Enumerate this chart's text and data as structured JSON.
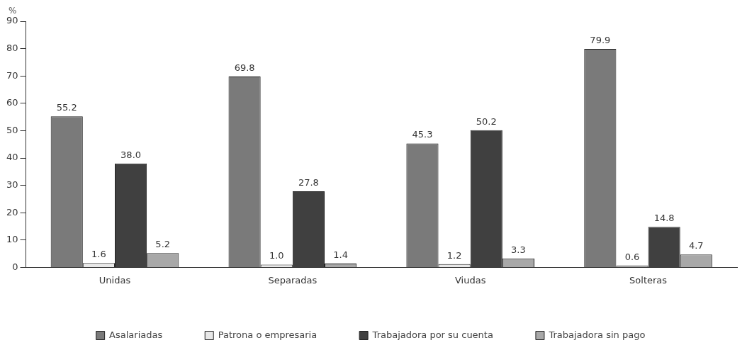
{
  "chart_data": {
    "type": "bar",
    "ylabel": "%",
    "categories": [
      "Unidas",
      "Separadas",
      "Viudas",
      "Solteras"
    ],
    "series": [
      {
        "name": "Asalariadas",
        "color": "#7a7a7a",
        "values": [
          55.2,
          69.8,
          45.3,
          79.9
        ],
        "value_labels": [
          "55.2",
          "69.8",
          "45.3",
          "79.9"
        ]
      },
      {
        "name": "Patrona o empresaria",
        "color": "#e8e8e8",
        "values": [
          1.6,
          1.0,
          1.2,
          0.6
        ],
        "value_labels": [
          "1.6",
          "1.0",
          "1.2",
          "0.6"
        ]
      },
      {
        "name": "Trabajadora por su cuenta",
        "color": "#404040",
        "values": [
          38.0,
          27.8,
          50.2,
          14.8
        ],
        "value_labels": [
          "38.0",
          "27.8",
          "50.2",
          "14.8"
        ]
      },
      {
        "name": "Trabajadora sin pago",
        "color": "#a8a8a8",
        "values": [
          5.2,
          1.4,
          3.3,
          4.7
        ],
        "value_labels": [
          "5.2",
          "1.4",
          "3.3",
          "4.7"
        ]
      }
    ],
    "ylim": [
      0,
      90
    ],
    "yticks": [
      0,
      10,
      20,
      30,
      40,
      50,
      60,
      70,
      80,
      90
    ],
    "grid": false,
    "legend": "bottom"
  }
}
